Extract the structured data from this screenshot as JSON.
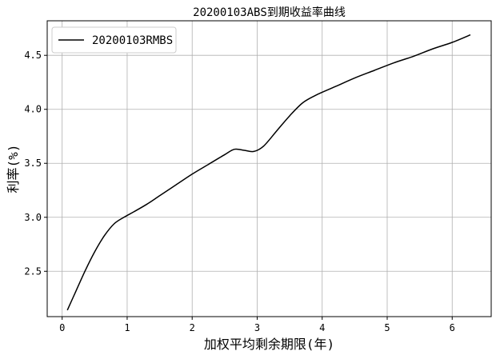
{
  "chart_data": {
    "type": "line",
    "title": "20200103ABS到期收益率曲线",
    "xlabel": "加权平均剩余期限(年)",
    "ylabel": "利率(%)",
    "xlim": [
      -0.23,
      6.6
    ],
    "ylim": [
      2.08,
      4.82
    ],
    "xticks": [
      "0",
      "1",
      "2",
      "3",
      "4",
      "5",
      "6"
    ],
    "yticks": [
      "2.5",
      "3.0",
      "3.5",
      "4.0",
      "4.5"
    ],
    "grid": true,
    "legend_position": "top-left",
    "series": [
      {
        "name": "20200103RMBS",
        "color": "#000000",
        "x": [
          0.08,
          0.2,
          0.35,
          0.5,
          0.65,
          0.8,
          0.95,
          1.1,
          1.3,
          1.5,
          1.75,
          2.0,
          2.25,
          2.5,
          2.65,
          2.8,
          2.95,
          3.1,
          3.3,
          3.5,
          3.7,
          3.9,
          4.2,
          4.5,
          4.8,
          5.1,
          5.4,
          5.7,
          6.0,
          6.28
        ],
        "y": [
          2.14,
          2.3,
          2.5,
          2.68,
          2.83,
          2.94,
          3.0,
          3.05,
          3.12,
          3.2,
          3.3,
          3.4,
          3.49,
          3.58,
          3.63,
          3.62,
          3.61,
          3.66,
          3.8,
          3.94,
          4.06,
          4.13,
          4.21,
          4.29,
          4.36,
          4.43,
          4.49,
          4.56,
          4.62,
          4.69
        ]
      }
    ]
  }
}
